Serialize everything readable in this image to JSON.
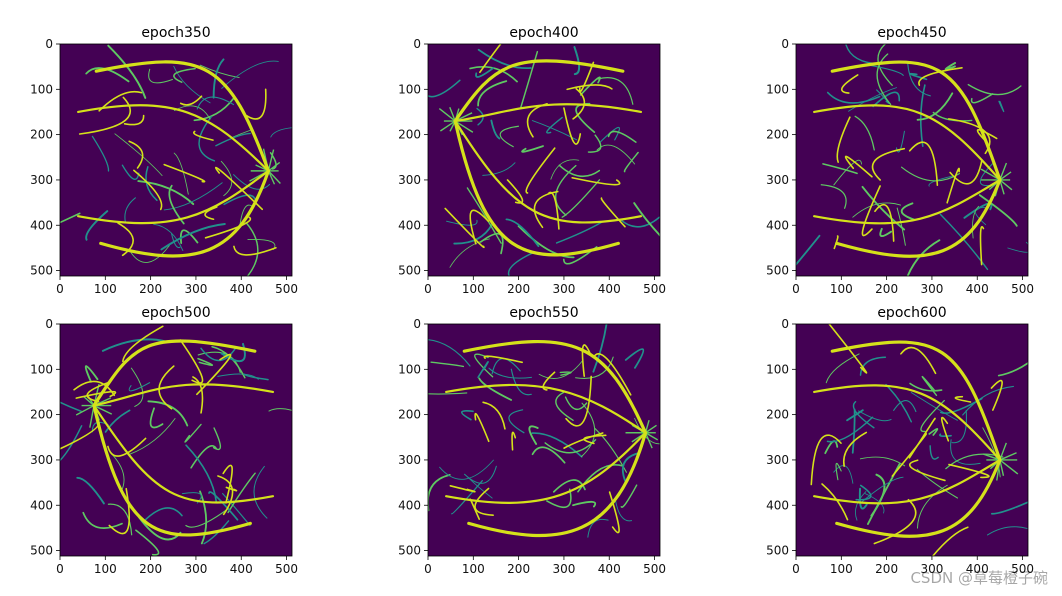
{
  "figure": {
    "panel_count": 6
  },
  "colors": {
    "background_dark": "#440154",
    "vessel_bright": "#d5e21a",
    "vessel_mid": "#5ec962",
    "vessel_faint": "#21918c",
    "axis": "#000000"
  },
  "chart_data": [
    {
      "type": "heatmap",
      "title": "epoch350",
      "xlim": [
        0,
        512
      ],
      "ylim": [
        512,
        0
      ],
      "xticks": [
        0,
        100,
        200,
        300,
        400,
        500
      ],
      "yticks": [
        0,
        100,
        200,
        300,
        400,
        500
      ],
      "colormap": "viridis",
      "optic_disc": [
        460,
        280
      ]
    },
    {
      "type": "heatmap",
      "title": "epoch400",
      "xlim": [
        0,
        512
      ],
      "ylim": [
        512,
        0
      ],
      "xticks": [
        0,
        100,
        200,
        300,
        400,
        500
      ],
      "yticks": [
        0,
        100,
        200,
        300,
        400,
        500
      ],
      "colormap": "viridis",
      "optic_disc": [
        60,
        170
      ]
    },
    {
      "type": "heatmap",
      "title": "epoch450",
      "xlim": [
        0,
        512
      ],
      "ylim": [
        512,
        0
      ],
      "xticks": [
        0,
        100,
        200,
        300,
        400,
        500
      ],
      "yticks": [
        0,
        100,
        200,
        300,
        400,
        500
      ],
      "colormap": "viridis",
      "optic_disc": [
        450,
        300
      ]
    },
    {
      "type": "heatmap",
      "title": "epoch500",
      "xlim": [
        0,
        512
      ],
      "ylim": [
        512,
        0
      ],
      "xticks": [
        0,
        100,
        200,
        300,
        400,
        500
      ],
      "yticks": [
        0,
        100,
        200,
        300,
        400,
        500
      ],
      "colormap": "viridis",
      "optic_disc": [
        75,
        180
      ]
    },
    {
      "type": "heatmap",
      "title": "epoch550",
      "xlim": [
        0,
        512
      ],
      "ylim": [
        512,
        0
      ],
      "xticks": [
        0,
        100,
        200,
        300,
        400,
        500
      ],
      "yticks": [
        0,
        100,
        200,
        300,
        400,
        500
      ],
      "colormap": "viridis",
      "optic_disc": [
        480,
        240
      ]
    },
    {
      "type": "heatmap",
      "title": "epoch600",
      "xlim": [
        0,
        512
      ],
      "ylim": [
        512,
        0
      ],
      "xticks": [
        0,
        100,
        200,
        300,
        400,
        500
      ],
      "yticks": [
        0,
        100,
        200,
        300,
        400,
        500
      ],
      "colormap": "viridis",
      "optic_disc": [
        450,
        300
      ]
    }
  ],
  "watermark": "CSDN @草莓橙子碗"
}
